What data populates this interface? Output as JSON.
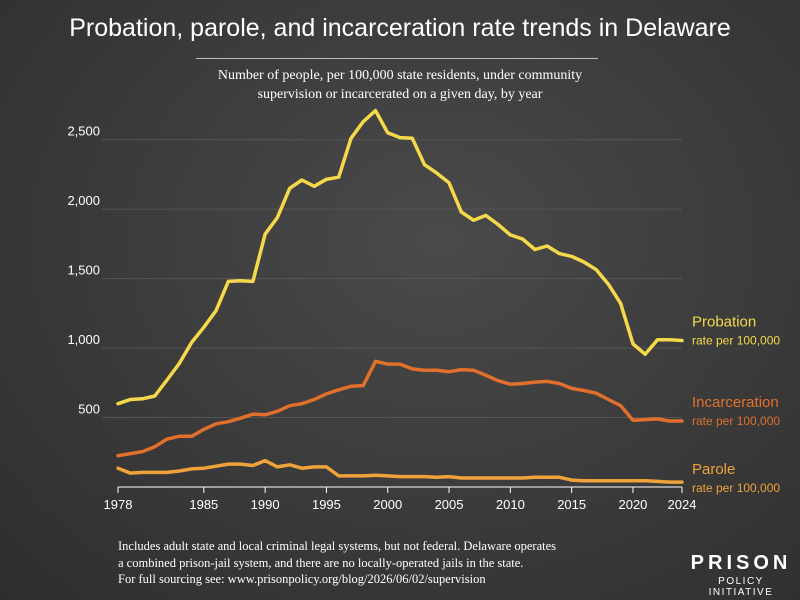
{
  "title": "Probation, parole, and incarceration rate trends in Delaware",
  "subtitle_line1": "Number of people, per 100,000 state residents, under community",
  "subtitle_line2": "supervision or incarcerated on a given day, by year",
  "footnote_line1": "Includes adult state and local criminal legal systems, but not federal. Delaware operates",
  "footnote_line2": "a combined prison-jail system, and there are no locally-operated jails in the state.",
  "footnote_line3": "For full sourcing see: www.prisonpolicy.org/blog/2026/06/02/supervision",
  "logo_line1": "PRISON",
  "logo_line2": "POLICY INITIATIVE",
  "chart_data": {
    "type": "line",
    "xlim": [
      1978,
      2024
    ],
    "ylim": [
      0,
      2750
    ],
    "x_ticks": [
      "1978",
      "1985",
      "1990",
      "1995",
      "2000",
      "2005",
      "2010",
      "2015",
      "2020",
      "2024"
    ],
    "y_ticks": [
      "500",
      "1,000",
      "1,500",
      "2,000",
      "2,500"
    ],
    "x": [
      1978,
      1979,
      1980,
      1981,
      1982,
      1983,
      1984,
      1985,
      1986,
      1987,
      1988,
      1989,
      1990,
      1991,
      1992,
      1993,
      1994,
      1995,
      1996,
      1997,
      1998,
      1999,
      2000,
      2001,
      2002,
      2003,
      2004,
      2005,
      2006,
      2007,
      2008,
      2009,
      2010,
      2011,
      2012,
      2013,
      2014,
      2015,
      2016,
      2017,
      2018,
      2019,
      2020,
      2021,
      2022,
      2023,
      2024
    ],
    "series": [
      {
        "name": "Probation",
        "sublabel": "rate per 100,000",
        "color": "#f5d94a",
        "values": [
          600,
          630,
          635,
          655,
          770,
          890,
          1040,
          1150,
          1270,
          1480,
          1485,
          1480,
          1820,
          1940,
          2150,
          2210,
          2165,
          2215,
          2230,
          2510,
          2630,
          2710,
          2550,
          2515,
          2510,
          2320,
          2260,
          2190,
          1980,
          1920,
          1955,
          1890,
          1815,
          1785,
          1710,
          1735,
          1680,
          1660,
          1620,
          1565,
          1460,
          1320,
          1030,
          955,
          1060,
          1060,
          1055
        ]
      },
      {
        "name": "Incarceration",
        "sublabel": "rate per 100,000",
        "color": "#e0702c",
        "values": [
          225,
          240,
          255,
          290,
          345,
          365,
          365,
          415,
          455,
          470,
          495,
          525,
          520,
          545,
          585,
          600,
          630,
          670,
          700,
          725,
          730,
          905,
          885,
          885,
          850,
          840,
          840,
          830,
          845,
          840,
          805,
          765,
          740,
          745,
          755,
          760,
          745,
          710,
          695,
          675,
          630,
          585,
          480,
          485,
          490,
          475,
          475
        ]
      },
      {
        "name": "Parole",
        "sublabel": "rate per 100,000",
        "color": "#f0a23a",
        "values": [
          135,
          100,
          105,
          105,
          105,
          115,
          130,
          135,
          150,
          165,
          165,
          155,
          190,
          145,
          160,
          135,
          145,
          145,
          80,
          80,
          80,
          85,
          80,
          75,
          75,
          75,
          70,
          75,
          65,
          65,
          65,
          65,
          65,
          65,
          70,
          70,
          70,
          50,
          45,
          45,
          45,
          45,
          45,
          45,
          40,
          35,
          35
        ]
      }
    ]
  }
}
